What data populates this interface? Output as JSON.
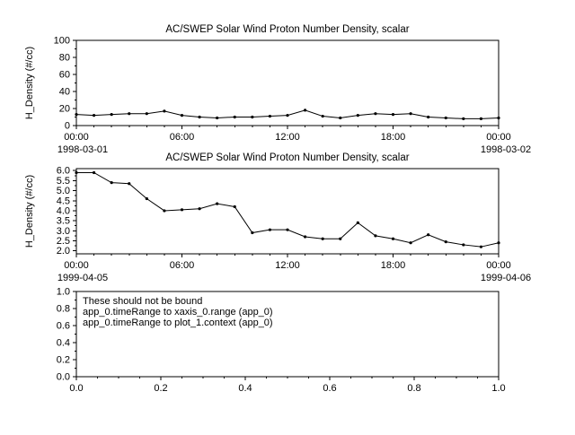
{
  "colors": {
    "background": "#ffffff",
    "foreground": "#000000"
  },
  "chart_data": [
    {
      "type": "line",
      "title": "AC/SWEP  Solar Wind Proton Number Density, scalar",
      "ylabel": "H_Density (#/cc)",
      "ylim": [
        0,
        100
      ],
      "yticks": [
        0,
        20,
        40,
        60,
        80,
        100
      ],
      "ytick_labels": [
        "0",
        "20",
        "40",
        "60",
        "80",
        "100"
      ],
      "xlim": [
        0,
        24
      ],
      "xticks": [
        0,
        6,
        12,
        18,
        24
      ],
      "xtick_labels": [
        "00:00",
        "06:00",
        "12:00",
        "18:00",
        "00:00"
      ],
      "x_start_date": "1998-03-01",
      "x_end_date": "1998-03-02",
      "time_axis": true,
      "x": [
        0,
        1,
        2,
        3,
        4,
        5,
        6,
        7,
        8,
        9,
        10,
        11,
        12,
        13,
        14,
        15,
        16,
        17,
        18,
        19,
        20,
        21,
        22,
        23,
        24
      ],
      "values": [
        13,
        12,
        13,
        14,
        14,
        17,
        12,
        10,
        9,
        10,
        10,
        11,
        12,
        18,
        11,
        9,
        12,
        14,
        13,
        14,
        10,
        9,
        8,
        8,
        9
      ]
    },
    {
      "type": "line",
      "title": "AC/SWEP  Solar Wind Proton Number Density, scalar",
      "ylabel": "H_Density (#/cc)",
      "ylim": [
        1.85,
        6.1
      ],
      "yticks": [
        2.0,
        2.5,
        3.0,
        3.5,
        4.0,
        4.5,
        5.0,
        5.5,
        6.0
      ],
      "ytick_labels": [
        "2.0",
        "2.5",
        "3.0",
        "3.5",
        "4.0",
        "4.5",
        "5.0",
        "5.5",
        "6.0"
      ],
      "xlim": [
        0,
        24
      ],
      "xticks": [
        0,
        6,
        12,
        18,
        24
      ],
      "xtick_labels": [
        "00:00",
        "06:00",
        "12:00",
        "18:00",
        "00:00"
      ],
      "x_start_date": "1999-04-05",
      "x_end_date": "1999-04-06",
      "time_axis": true,
      "x": [
        0,
        1,
        2,
        3,
        4,
        5,
        6,
        7,
        8,
        9,
        10,
        11,
        12,
        13,
        14,
        15,
        16,
        17,
        18,
        19,
        20,
        21,
        22,
        23,
        24
      ],
      "values": [
        5.9,
        5.9,
        5.4,
        5.35,
        4.6,
        4.0,
        4.05,
        4.1,
        4.35,
        4.2,
        2.9,
        3.05,
        3.05,
        2.7,
        2.6,
        2.6,
        3.4,
        2.75,
        2.6,
        2.4,
        2.8,
        2.45,
        2.3,
        2.2,
        2.4
      ]
    },
    {
      "type": "line",
      "title": "",
      "ylabel": "",
      "ylim": [
        0,
        1
      ],
      "yticks": [
        0,
        0.2,
        0.4,
        0.6,
        0.8,
        1.0
      ],
      "ytick_labels": [
        "0.0",
        "0.2",
        "0.4",
        "0.6",
        "0.8",
        "1.0"
      ],
      "xlim": [
        0,
        1
      ],
      "xticks": [
        0,
        0.2,
        0.4,
        0.6,
        0.8,
        1.0
      ],
      "xtick_labels": [
        "0.0",
        "0.2",
        "0.4",
        "0.6",
        "0.8",
        "1.0"
      ],
      "time_axis": false,
      "x": [],
      "values": [],
      "annotations": [
        "These should not be bound",
        "app_0.timeRange to xaxis_0.range  (app_0)",
        "app_0.timeRange to plot_1.context  (app_0)"
      ]
    }
  ]
}
